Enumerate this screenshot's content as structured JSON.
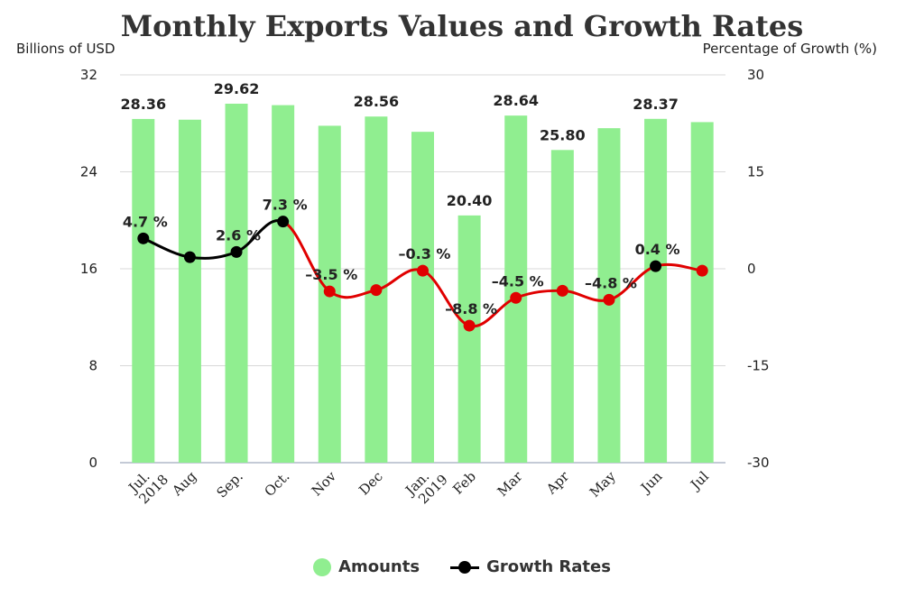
{
  "title": "Monthly Exports Values and Growth Rates",
  "colors": {
    "bars": "#90EE90",
    "line_positive": "#000000",
    "line_negative": "#E00000",
    "grid": "#d8d8d8"
  },
  "chart_data": {
    "type": "bar",
    "title": "Monthly Exports Values and Growth Rates",
    "y_left_label": "Billions of USD",
    "y_right_label": "Percentage of Growth (%)",
    "categories": [
      [
        "Jul.",
        "2018"
      ],
      [
        "Aug"
      ],
      [
        "Sep."
      ],
      [
        "Oct."
      ],
      [
        "Nov"
      ],
      [
        "Dec"
      ],
      [
        "Jan.",
        "2019"
      ],
      [
        "Feb"
      ],
      [
        "Mar"
      ],
      [
        "Apr"
      ],
      [
        "May"
      ],
      [
        "Jun"
      ],
      [
        "Jul"
      ]
    ],
    "y_left": {
      "min": 0,
      "max": 32,
      "ticks": [
        0,
        8,
        16,
        24,
        32
      ]
    },
    "y_right": {
      "min": -30,
      "max": 30,
      "ticks": [
        -30,
        -15,
        0,
        15,
        30
      ]
    },
    "legend_position": "bottom",
    "series": [
      {
        "name": "Amounts",
        "type": "bar",
        "axis": "left",
        "values": [
          28.36,
          28.3,
          29.62,
          29.5,
          27.8,
          28.56,
          27.3,
          20.4,
          28.64,
          25.8,
          27.6,
          28.37,
          28.1
        ],
        "labels": [
          "28.36",
          "",
          "29.62",
          "",
          "",
          "28.56",
          "",
          "20.40",
          "28.64",
          "25.80",
          "",
          "28.37",
          ""
        ]
      },
      {
        "name": "Growth Rates",
        "type": "line",
        "axis": "right",
        "values": [
          4.7,
          1.8,
          2.6,
          7.3,
          -3.5,
          -3.3,
          -0.3,
          -8.8,
          -4.5,
          -3.4,
          -4.8,
          0.4,
          -0.3
        ],
        "labels": [
          "4.7 %",
          "",
          "2.6 %",
          "7.3 %",
          "–3.5 %",
          "",
          "–0.3 %",
          "–8.8 %",
          "–4.5 %",
          "",
          "–4.8 %",
          "0.4 %",
          ""
        ]
      }
    ]
  }
}
